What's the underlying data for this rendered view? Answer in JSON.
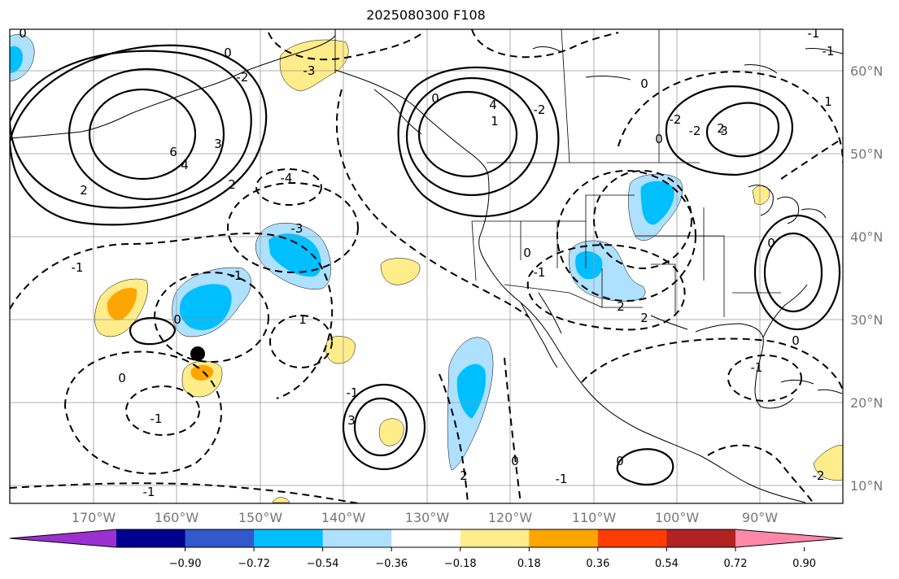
{
  "title": "2025080300 F108",
  "map": {
    "lat_labels": [
      "60°N",
      "50°N",
      "40°N",
      "30°N",
      "20°N",
      "10°N"
    ],
    "lon_labels": [
      "170°W",
      "160°W",
      "150°W",
      "140°W",
      "130°W",
      "120°W",
      "110°W",
      "100°W",
      "90°W"
    ],
    "contour_labels": [
      "0",
      "-2",
      "-3",
      "6",
      "4",
      "3",
      "2",
      "2",
      "0",
      "-4",
      "-3",
      "-1",
      "-1",
      "0",
      "1",
      "-1",
      "0",
      "-1",
      "3",
      "4",
      "1",
      "-2",
      "0",
      "0",
      "-1",
      "2",
      "2",
      "-2",
      "-2",
      "0",
      "0",
      "-1",
      "0",
      "0",
      "-1",
      "2",
      "3",
      "-2",
      "2",
      "0",
      "-1",
      "0",
      "-1",
      "1",
      "-1"
    ],
    "marker": "black-dot"
  },
  "colorbar": {
    "colors": [
      "#9b30d0",
      "#000090",
      "#3158cc",
      "#00bfff",
      "#aee0ff",
      "#ffffff",
      "#ffec8b",
      "#ffa500",
      "#ff3c00",
      "#b22222",
      "#ff88aa"
    ],
    "tick_labels": [
      "−0.90",
      "−0.72",
      "−0.54",
      "−0.36",
      "−0.18",
      "0.18",
      "0.36",
      "0.54",
      "0.72",
      "0.90"
    ]
  }
}
